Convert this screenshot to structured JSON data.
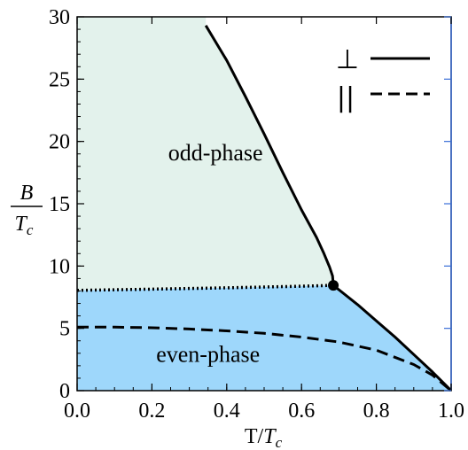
{
  "chart_data": {
    "type": "line",
    "title": "",
    "xlabel": {
      "main": "T/",
      "italic": "T",
      "sub": "c"
    },
    "ylabel": {
      "numerator": "B",
      "denominator": "T",
      "sub": "c"
    },
    "xlim": [
      0.0,
      1.0
    ],
    "ylim": [
      0,
      30
    ],
    "x_ticks": [
      "0.0",
      "0.2",
      "0.4",
      "0.6",
      "0.8",
      "1.0"
    ],
    "x_tick_values": [
      0.0,
      0.2,
      0.4,
      0.6,
      0.8,
      1.0
    ],
    "y_ticks": [
      "0",
      "5",
      "10",
      "15",
      "20",
      "25",
      "30"
    ],
    "y_tick_values": [
      0,
      5,
      10,
      15,
      20,
      25,
      30
    ],
    "grid": false,
    "legend_position": "top-right",
    "legend": [
      {
        "symbol": "⊥",
        "style": "solid"
      },
      {
        "symbol": "||",
        "style": "dashed"
      }
    ],
    "regions": [
      {
        "label": "odd-phase",
        "color": "#e3f2ec",
        "label_at": [
          0.37,
          18.5
        ]
      },
      {
        "label": "even-phase",
        "color": "#9ed7fb",
        "label_at": [
          0.35,
          2.3
        ]
      }
    ],
    "series": [
      {
        "style": "solid",
        "x": [
          0.344,
          0.4,
          0.45,
          0.5,
          0.55,
          0.6,
          0.64,
          0.66,
          0.675,
          0.683,
          0.685
        ],
        "y": [
          29.3,
          26.5,
          23.6,
          20.6,
          17.5,
          14.5,
          12.3,
          11.0,
          9.9,
          9.2,
          8.45
        ]
      },
      {
        "style": "solid",
        "x": [
          0.685,
          0.75,
          0.8,
          0.85,
          0.9,
          0.95,
          0.98,
          1.0
        ],
        "y": [
          8.45,
          6.9,
          5.6,
          4.3,
          2.9,
          1.5,
          0.6,
          0.0
        ]
      },
      {
        "style": "dashed",
        "x": [
          0.0,
          0.1,
          0.2,
          0.3,
          0.4,
          0.5,
          0.6,
          0.7,
          0.8,
          0.9,
          0.95,
          1.0
        ],
        "y": [
          5.1,
          5.1,
          5.05,
          4.95,
          4.8,
          4.6,
          4.3,
          3.9,
          3.25,
          2.1,
          1.25,
          0.0
        ]
      },
      {
        "style": "dotted",
        "x": [
          0.0,
          0.2,
          0.4,
          0.6,
          0.685
        ],
        "y": [
          8.05,
          8.15,
          8.25,
          8.38,
          8.45
        ]
      }
    ],
    "points": [
      {
        "x": 0.685,
        "y": 8.45
      }
    ],
    "colors": {
      "odd_fill": "#e3f2ec",
      "even_fill": "#9ed7fb",
      "line": "#000000",
      "frame": "#000000",
      "right_axis": "#3a6fd8"
    }
  }
}
